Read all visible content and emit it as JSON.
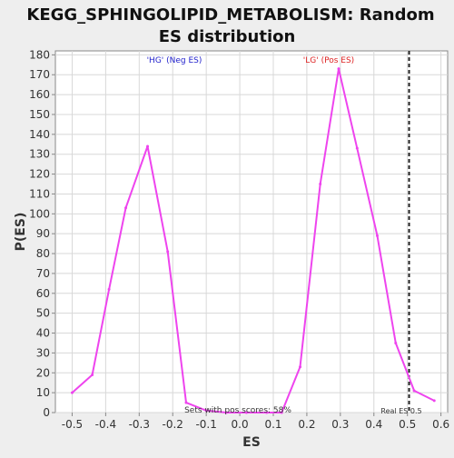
{
  "chart_data": {
    "type": "line",
    "title_line1": "KEGG_SPHINGOLIPID_METABOLISM: Random",
    "title_line2": "ES distribution",
    "xlabel": "ES",
    "ylabel": "P(ES)",
    "xlim": [
      -0.55,
      0.62
    ],
    "ylim": [
      0,
      182
    ],
    "xticks": [
      -0.5,
      -0.4,
      -0.3,
      -0.2,
      -0.1,
      0.0,
      0.1,
      0.2,
      0.3,
      0.4,
      0.5,
      0.6
    ],
    "xtick_labels": [
      "-0.5",
      "-0.4",
      "-0.3",
      "-0.2",
      "-0.1",
      "0.0",
      "0.1",
      "0.2",
      "0.3",
      "0.4",
      "0.5",
      "0.6"
    ],
    "yticks": [
      0,
      10,
      20,
      30,
      40,
      50,
      60,
      70,
      80,
      90,
      100,
      110,
      120,
      130,
      140,
      150,
      160,
      170,
      180
    ],
    "ytick_labels": [
      "0",
      "10",
      "20",
      "30",
      "40",
      "50",
      "60",
      "70",
      "80",
      "90",
      "100",
      "110",
      "120",
      "130",
      "140",
      "150",
      "160",
      "170",
      "180"
    ],
    "series": [
      {
        "color": "#ee44ee",
        "x": [
          -0.5,
          -0.44,
          -0.39,
          -0.34,
          -0.275,
          -0.215,
          -0.16,
          -0.1,
          -0.04,
          0.02,
          0.08,
          0.125,
          0.18,
          0.24,
          0.295,
          0.35,
          0.41,
          0.465,
          0.52,
          0.58
        ],
        "y": [
          10,
          19,
          62,
          103,
          134,
          81,
          5,
          1,
          0,
          0,
          0,
          0,
          23,
          115,
          173,
          133,
          89,
          35,
          11,
          6
        ]
      }
    ],
    "real_es": 0.505,
    "annotations": {
      "neg_label": "'HG' (Neg ES)",
      "pos_label": "'LG' (Pos ES)",
      "sets_text": "Sets with pos scores: 58%",
      "real_es_text": "Real ES 0.5"
    },
    "colors": {
      "neg_label": "#2222cc",
      "pos_label": "#dd2222",
      "grid": "#d8d8d8",
      "plot_bg": "#ffffff",
      "page_bg": "#eeeeee"
    },
    "grid": true
  }
}
